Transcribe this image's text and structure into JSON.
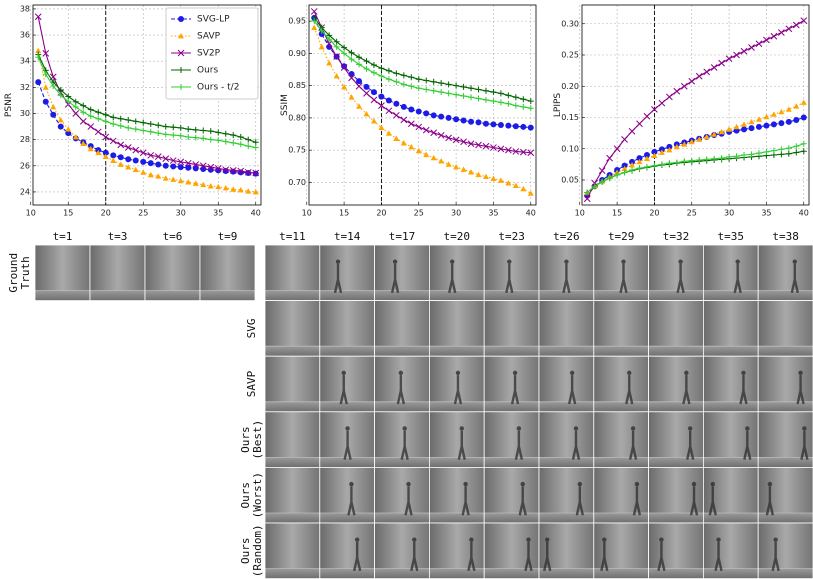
{
  "chart_data": [
    {
      "type": "line",
      "ylabel": "PSNR",
      "grid": true,
      "vline": 20,
      "legend": "upper right",
      "xlim": [
        10.3,
        40.7
      ],
      "xticks": [
        10,
        15,
        20,
        25,
        30,
        35,
        40
      ],
      "ylim": [
        23.0,
        38.3
      ],
      "yticks": [
        24,
        26,
        28,
        30,
        32,
        34,
        36,
        38
      ],
      "x": [
        11,
        12,
        13,
        14,
        15,
        16,
        17,
        18,
        19,
        20,
        21,
        22,
        23,
        24,
        25,
        26,
        27,
        28,
        29,
        30,
        31,
        32,
        33,
        34,
        35,
        36,
        37,
        38,
        39,
        40
      ],
      "series": [
        {
          "name": "SVG-LP",
          "color": "#1c1ce6",
          "linestyle": "dashed",
          "marker": "circle",
          "values": [
            32.4,
            30.9,
            29.9,
            29.0,
            28.5,
            28.1,
            27.8,
            27.5,
            27.2,
            27.0,
            26.8,
            26.65,
            26.5,
            26.4,
            26.3,
            26.2,
            26.1,
            26.0,
            25.95,
            25.9,
            25.85,
            25.8,
            25.75,
            25.7,
            25.65,
            25.6,
            25.55,
            25.5,
            25.45,
            25.4
          ]
        },
        {
          "name": "SAVP",
          "color": "#ffa500",
          "linestyle": "dotted",
          "marker": "triangle",
          "values": [
            34.8,
            32.0,
            30.5,
            29.5,
            28.8,
            28.2,
            27.7,
            27.3,
            27.0,
            26.7,
            26.4,
            26.1,
            25.9,
            25.7,
            25.5,
            25.3,
            25.2,
            25.05,
            24.95,
            24.85,
            24.75,
            24.65,
            24.55,
            24.45,
            24.4,
            24.3,
            24.2,
            24.15,
            24.05,
            24.0
          ]
        },
        {
          "name": "SV2P",
          "color": "#8b008b",
          "linestyle": "solid",
          "marker": "x",
          "values": [
            37.4,
            34.6,
            32.8,
            31.6,
            30.7,
            30.0,
            29.4,
            29.0,
            28.6,
            28.2,
            27.9,
            27.6,
            27.4,
            27.2,
            27.0,
            26.8,
            26.7,
            26.55,
            26.4,
            26.3,
            26.2,
            26.1,
            26.0,
            25.9,
            25.8,
            25.7,
            25.65,
            25.6,
            25.5,
            25.45
          ]
        },
        {
          "name": "Ours",
          "color": "#006400",
          "linestyle": "solid",
          "marker": "plus",
          "values": [
            34.5,
            33.3,
            32.4,
            31.8,
            31.3,
            30.9,
            30.6,
            30.3,
            30.1,
            29.9,
            29.7,
            29.6,
            29.5,
            29.4,
            29.3,
            29.2,
            29.1,
            29.0,
            28.95,
            28.9,
            28.8,
            28.75,
            28.7,
            28.65,
            28.55,
            28.45,
            28.35,
            28.2,
            28.0,
            27.8
          ]
        },
        {
          "name": "Ours - t/2",
          "color": "#32cd32",
          "linestyle": "solid",
          "marker": "plus",
          "values": [
            34.3,
            33.0,
            32.1,
            31.4,
            30.9,
            30.5,
            30.1,
            29.8,
            29.6,
            29.4,
            29.2,
            29.05,
            28.9,
            28.8,
            28.7,
            28.6,
            28.5,
            28.4,
            28.35,
            28.3,
            28.2,
            28.15,
            28.1,
            28.0,
            27.95,
            27.85,
            27.75,
            27.65,
            27.5,
            27.4
          ]
        }
      ]
    },
    {
      "type": "line",
      "ylabel": "SSIM",
      "grid": true,
      "vline": 20,
      "xlim": [
        10.3,
        40.7
      ],
      "xticks": [
        10,
        15,
        20,
        25,
        30,
        35,
        40
      ],
      "ylim": [
        0.665,
        0.975
      ],
      "yticks": [
        {
          "value": 0.7,
          "label": "0.70"
        },
        0.75,
        {
          "value": 0.8,
          "label": "0.80"
        },
        0.85,
        {
          "value": 0.9,
          "label": "0.90"
        },
        0.95
      ],
      "x": [
        11,
        12,
        13,
        14,
        15,
        16,
        17,
        18,
        19,
        20,
        21,
        22,
        23,
        24,
        25,
        26,
        27,
        28,
        29,
        30,
        31,
        32,
        33,
        34,
        35,
        36,
        37,
        38,
        39,
        40
      ],
      "series": [
        {
          "name": "SVG-LP",
          "color": "#1c1ce6",
          "linestyle": "dashed",
          "marker": "circle",
          "values": [
            0.955,
            0.93,
            0.91,
            0.895,
            0.88,
            0.868,
            0.857,
            0.848,
            0.84,
            0.833,
            0.827,
            0.822,
            0.817,
            0.813,
            0.81,
            0.807,
            0.804,
            0.802,
            0.8,
            0.798,
            0.796,
            0.794,
            0.793,
            0.791,
            0.79,
            0.789,
            0.788,
            0.787,
            0.786,
            0.785
          ]
        },
        {
          "name": "SAVP",
          "color": "#ffa500",
          "linestyle": "dotted",
          "marker": "triangle",
          "values": [
            0.94,
            0.91,
            0.885,
            0.865,
            0.848,
            0.832,
            0.818,
            0.806,
            0.795,
            0.785,
            0.776,
            0.768,
            0.761,
            0.755,
            0.749,
            0.743,
            0.738,
            0.733,
            0.728,
            0.724,
            0.72,
            0.716,
            0.712,
            0.709,
            0.706,
            0.703,
            0.699,
            0.695,
            0.69,
            0.683
          ]
        },
        {
          "name": "SV2P",
          "color": "#8b008b",
          "linestyle": "solid",
          "marker": "x",
          "values": [
            0.965,
            0.94,
            0.915,
            0.895,
            0.878,
            0.862,
            0.849,
            0.838,
            0.828,
            0.819,
            0.811,
            0.804,
            0.797,
            0.791,
            0.786,
            0.781,
            0.777,
            0.773,
            0.769,
            0.766,
            0.763,
            0.76,
            0.758,
            0.756,
            0.754,
            0.752,
            0.75,
            0.748,
            0.747,
            0.746
          ]
        },
        {
          "name": "Ours",
          "color": "#006400",
          "linestyle": "solid",
          "marker": "plus",
          "values": [
            0.955,
            0.94,
            0.928,
            0.918,
            0.909,
            0.901,
            0.894,
            0.888,
            0.882,
            0.877,
            0.873,
            0.869,
            0.866,
            0.863,
            0.86,
            0.858,
            0.856,
            0.854,
            0.852,
            0.85,
            0.848,
            0.846,
            0.844,
            0.842,
            0.84,
            0.838,
            0.835,
            0.832,
            0.829,
            0.826
          ]
        },
        {
          "name": "Ours - t/2",
          "color": "#32cd32",
          "linestyle": "solid",
          "marker": "plus",
          "values": [
            0.95,
            0.935,
            0.922,
            0.91,
            0.9,
            0.891,
            0.883,
            0.876,
            0.87,
            0.865,
            0.86,
            0.856,
            0.852,
            0.849,
            0.846,
            0.844,
            0.842,
            0.84,
            0.838,
            0.836,
            0.834,
            0.832,
            0.83,
            0.828,
            0.826,
            0.824,
            0.822,
            0.819,
            0.817,
            0.815
          ]
        }
      ]
    },
    {
      "type": "line",
      "ylabel": "LPIPS",
      "grid": true,
      "vline": 20,
      "xlim": [
        10.3,
        40.7
      ],
      "xticks": [
        10,
        15,
        20,
        25,
        30,
        35,
        40
      ],
      "ylim": [
        0.01,
        0.33
      ],
      "yticks": [
        0.05,
        {
          "value": 0.1,
          "label": "0.10"
        },
        0.15,
        {
          "value": 0.2,
          "label": "0.20"
        },
        0.25,
        {
          "value": 0.3,
          "label": "0.30"
        }
      ],
      "x": [
        11,
        12,
        13,
        14,
        15,
        16,
        17,
        18,
        19,
        20,
        21,
        22,
        23,
        24,
        25,
        26,
        27,
        28,
        29,
        30,
        31,
        32,
        33,
        34,
        35,
        36,
        37,
        38,
        39,
        40
      ],
      "series": [
        {
          "name": "SVG-LP",
          "color": "#1c1ce6",
          "linestyle": "dashed",
          "marker": "circle",
          "values": [
            0.025,
            0.04,
            0.05,
            0.058,
            0.066,
            0.073,
            0.079,
            0.085,
            0.09,
            0.095,
            0.099,
            0.103,
            0.107,
            0.11,
            0.113,
            0.116,
            0.119,
            0.122,
            0.124,
            0.127,
            0.129,
            0.131,
            0.133,
            0.135,
            0.137,
            0.139,
            0.141,
            0.143,
            0.146,
            0.15
          ]
        },
        {
          "name": "SAVP",
          "color": "#ffa500",
          "linestyle": "dotted",
          "marker": "triangle",
          "values": [
            0.03,
            0.04,
            0.048,
            0.055,
            0.062,
            0.068,
            0.074,
            0.079,
            0.084,
            0.089,
            0.094,
            0.098,
            0.103,
            0.107,
            0.111,
            0.115,
            0.119,
            0.123,
            0.127,
            0.131,
            0.135,
            0.139,
            0.143,
            0.147,
            0.151,
            0.155,
            0.159,
            0.163,
            0.168,
            0.174
          ]
        },
        {
          "name": "SV2P",
          "color": "#8b008b",
          "linestyle": "solid",
          "marker": "x",
          "values": [
            0.02,
            0.045,
            0.065,
            0.085,
            0.1,
            0.115,
            0.128,
            0.14,
            0.152,
            0.163,
            0.173,
            0.183,
            0.192,
            0.2,
            0.208,
            0.216,
            0.223,
            0.23,
            0.237,
            0.244,
            0.25,
            0.256,
            0.262,
            0.268,
            0.274,
            0.28,
            0.286,
            0.292,
            0.298,
            0.305
          ]
        },
        {
          "name": "Ours",
          "color": "#006400",
          "linestyle": "solid",
          "marker": "plus",
          "values": [
            0.03,
            0.04,
            0.047,
            0.053,
            0.058,
            0.062,
            0.065,
            0.068,
            0.07,
            0.072,
            0.074,
            0.075,
            0.077,
            0.078,
            0.079,
            0.08,
            0.081,
            0.082,
            0.083,
            0.084,
            0.085,
            0.086,
            0.087,
            0.088,
            0.089,
            0.09,
            0.091,
            0.092,
            0.094,
            0.096
          ]
        },
        {
          "name": "Ours - t/2",
          "color": "#32cd32",
          "linestyle": "solid",
          "marker": "plus",
          "values": [
            0.03,
            0.04,
            0.047,
            0.053,
            0.058,
            0.062,
            0.066,
            0.069,
            0.071,
            0.073,
            0.075,
            0.077,
            0.078,
            0.08,
            0.081,
            0.082,
            0.083,
            0.084,
            0.085,
            0.087,
            0.088,
            0.09,
            0.091,
            0.093,
            0.095,
            0.097,
            0.099,
            0.101,
            0.104,
            0.108
          ]
        }
      ]
    }
  ],
  "frame_grid": {
    "context_labels": [
      "t=1",
      "t=3",
      "t=6",
      "t=9"
    ],
    "prediction_labels": [
      "t=11",
      "t=14",
      "t=17",
      "t=20",
      "t=23",
      "t=26",
      "t=29",
      "t=32",
      "t=35",
      "t=38"
    ],
    "row_labels": [
      [
        "Ground",
        "Truth"
      ],
      [
        "SVG"
      ],
      [
        "SAVP"
      ],
      [
        "Ours",
        "(Best)"
      ],
      [
        "Ours",
        "(Worst)"
      ],
      [
        "Ours",
        "(Random)"
      ]
    ]
  }
}
